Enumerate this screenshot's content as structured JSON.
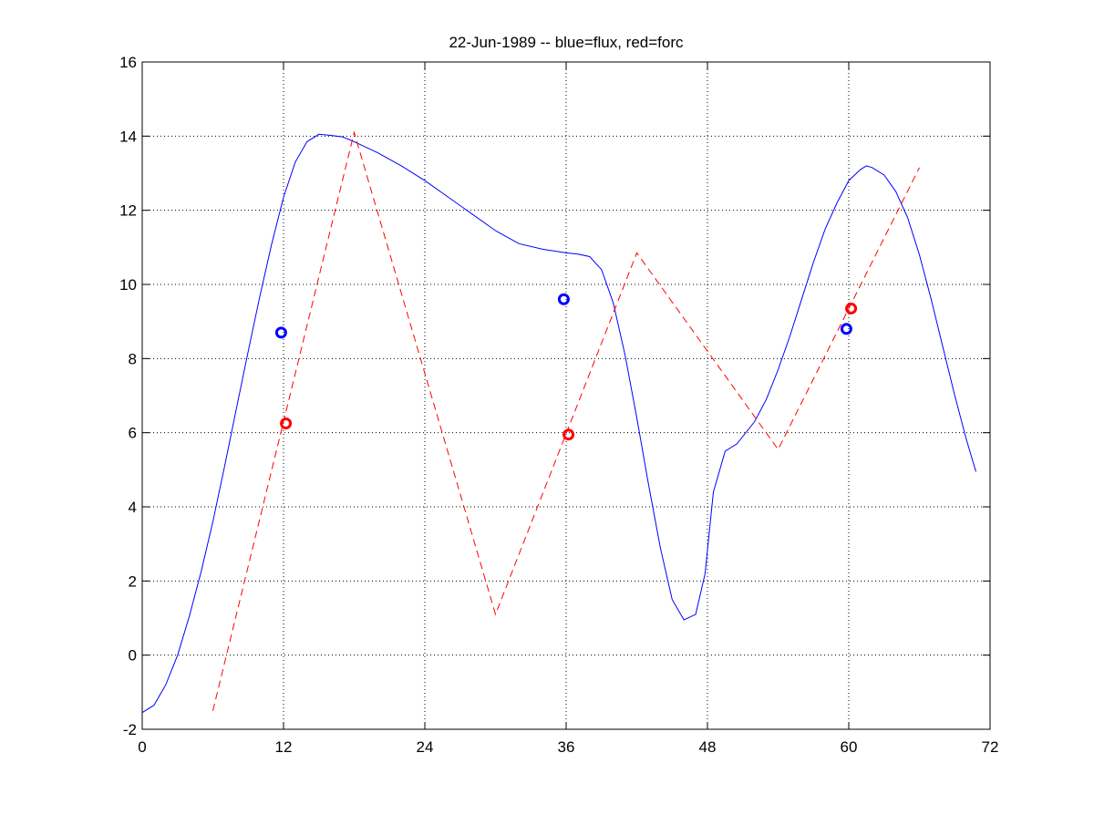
{
  "chart_data": {
    "type": "line",
    "title": "22-Jun-1989 -- blue=flux, red=forc",
    "xlabel": "",
    "ylabel": "",
    "xlim": [
      0,
      72
    ],
    "ylim": [
      -2,
      16
    ],
    "x_ticks": [
      0,
      12,
      24,
      36,
      48,
      60,
      72
    ],
    "y_ticks": [
      -2,
      0,
      2,
      4,
      6,
      8,
      10,
      12,
      14,
      16
    ],
    "x_tick_labels": [
      "0",
      "12",
      "24",
      "36",
      "48",
      "60",
      "72"
    ],
    "y_tick_labels": [
      "-2",
      "0",
      "2",
      "4",
      "6",
      "8",
      "10",
      "12",
      "14",
      "16"
    ],
    "grid": true,
    "series": [
      {
        "color": "#0000ff",
        "style": "solid",
        "points": [
          [
            0,
            -1.55
          ],
          [
            1,
            -1.35
          ],
          [
            2,
            -0.8
          ],
          [
            3,
            0.0
          ],
          [
            4,
            1.05
          ],
          [
            5,
            2.25
          ],
          [
            6,
            3.6
          ],
          [
            7,
            5.1
          ],
          [
            8,
            6.65
          ],
          [
            9,
            8.2
          ],
          [
            10,
            9.7
          ],
          [
            11,
            11.1
          ],
          [
            12,
            12.35
          ],
          [
            13,
            13.3
          ],
          [
            14,
            13.85
          ],
          [
            15,
            14.05
          ],
          [
            16,
            14.02
          ],
          [
            17,
            13.98
          ],
          [
            18,
            13.85
          ],
          [
            20,
            13.55
          ],
          [
            22,
            13.2
          ],
          [
            24,
            12.8
          ],
          [
            26,
            12.35
          ],
          [
            28,
            11.9
          ],
          [
            30,
            11.45
          ],
          [
            32,
            11.1
          ],
          [
            34,
            10.95
          ],
          [
            36,
            10.85
          ],
          [
            37,
            10.82
          ],
          [
            38,
            10.75
          ],
          [
            39,
            10.4
          ],
          [
            40,
            9.5
          ],
          [
            41,
            8.1
          ],
          [
            42,
            6.4
          ],
          [
            43,
            4.6
          ],
          [
            44,
            2.9
          ],
          [
            45,
            1.5
          ],
          [
            46,
            0.95
          ],
          [
            47,
            1.1
          ],
          [
            47.8,
            2.2
          ],
          [
            48.5,
            4.4
          ],
          [
            49.5,
            5.5
          ],
          [
            50.5,
            5.7
          ],
          [
            52,
            6.3
          ],
          [
            53,
            6.9
          ],
          [
            54,
            7.7
          ],
          [
            55,
            8.6
          ],
          [
            56,
            9.6
          ],
          [
            57,
            10.6
          ],
          [
            58,
            11.5
          ],
          [
            59,
            12.2
          ],
          [
            60,
            12.8
          ],
          [
            61,
            13.1
          ],
          [
            61.5,
            13.2
          ],
          [
            62,
            13.15
          ],
          [
            63,
            12.95
          ],
          [
            64,
            12.5
          ],
          [
            65,
            11.8
          ],
          [
            66,
            10.8
          ],
          [
            67,
            9.6
          ],
          [
            68,
            8.3
          ],
          [
            69,
            7.0
          ],
          [
            70,
            5.8
          ],
          [
            70.8,
            4.95
          ]
        ]
      },
      {
        "color": "#ff0000",
        "style": "dashed",
        "points": [
          [
            6,
            -1.5
          ],
          [
            18,
            14.1
          ],
          [
            30,
            1.1
          ],
          [
            42,
            10.85
          ],
          [
            54,
            5.55
          ],
          [
            66,
            13.15
          ]
        ]
      },
      {
        "color": "#0000ff",
        "style": "markers",
        "marker": "circle",
        "points": [
          [
            11.8,
            8.7
          ],
          [
            35.8,
            9.6
          ],
          [
            59.8,
            8.8
          ]
        ]
      },
      {
        "color": "#ff0000",
        "style": "markers",
        "marker": "circle",
        "points": [
          [
            12.2,
            6.25
          ],
          [
            36.2,
            5.95
          ],
          [
            60.2,
            9.35
          ]
        ]
      }
    ]
  }
}
